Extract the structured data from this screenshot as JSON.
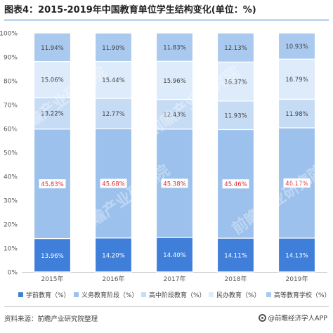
{
  "title": "图表4：2015-2019年中国教育单位学生结构变化(单位：%)",
  "footer": {
    "source": "资料来源：前瞻产业研究院整理",
    "brand": "@前瞻经济学人APP"
  },
  "watermark": "前瞻产业研究院",
  "chart_data": {
    "type": "bar",
    "stacked": true,
    "categories": [
      "2015年",
      "2016年",
      "2017年",
      "2018年",
      "2019年"
    ],
    "ylim": [
      0,
      100
    ],
    "yticks": [
      "0%",
      "10%",
      "20%",
      "30%",
      "40%",
      "50%",
      "60%",
      "70%",
      "80%",
      "90%",
      "100%"
    ],
    "grid": false,
    "legend_position": "bottom",
    "series": [
      {
        "name": "学前教育（%）",
        "color": "#3f7fd9",
        "label_color": "#ffffff",
        "highlight": false,
        "values": [
          13.96,
          14.2,
          14.4,
          14.11,
          14.13
        ],
        "labels": [
          "13.96%",
          "14.20%",
          "14.40%",
          "14.11%",
          "14.13%"
        ]
      },
      {
        "name": "义务教育阶段（%）",
        "color": "#9cc1ec",
        "label_color": "#e0262c",
        "highlight": true,
        "values": [
          45.83,
          45.68,
          45.38,
          45.46,
          46.17
        ],
        "labels": [
          "45.83%",
          "45.68%",
          "45.38%",
          "45.46%",
          "46.17%"
        ]
      },
      {
        "name": "高中阶段教育（%）",
        "color": "#c6dcf5",
        "label_color": "#444444",
        "highlight": false,
        "values": [
          13.22,
          12.77,
          12.43,
          11.93,
          11.98
        ],
        "labels": [
          "13.22%",
          "12.77%",
          "12.43%",
          "11.93%",
          "11.98%"
        ]
      },
      {
        "name": "民办教育（%）",
        "color": "#deebfa",
        "label_color": "#444444",
        "highlight": false,
        "values": [
          15.06,
          15.44,
          15.96,
          16.37,
          16.79
        ],
        "labels": [
          "15.06%",
          "15.44%",
          "15.96%",
          "16.37%",
          "16.79%"
        ]
      },
      {
        "name": "高等教育学校（%）",
        "color": "#a9c9ee",
        "label_color": "#444444",
        "highlight": false,
        "values": [
          11.94,
          11.9,
          11.83,
          12.13,
          10.93
        ],
        "labels": [
          "11.94%",
          "11.90%",
          "11.83%",
          "12.13%",
          "10.93%"
        ]
      }
    ]
  }
}
